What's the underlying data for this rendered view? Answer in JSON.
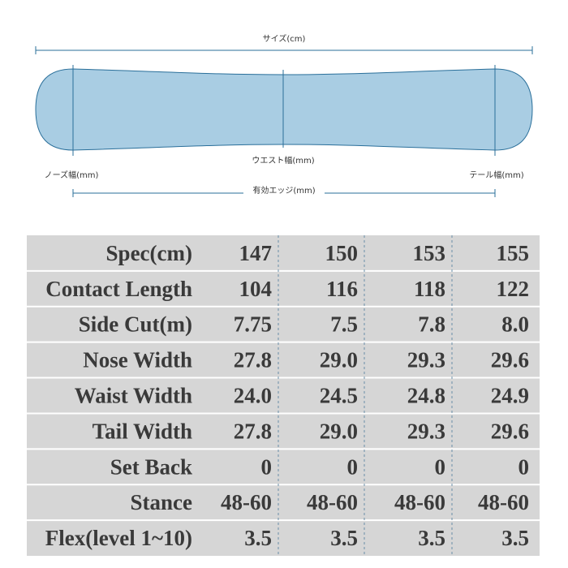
{
  "diagram": {
    "size_label": "サイズ(cm)",
    "waist_label": "ウエスト幅(mm)",
    "nose_label": "ノーズ幅(mm)",
    "tail_label": "テール幅(mm)",
    "edge_label": "有効エッジ(mm)"
  },
  "table": {
    "rows": [
      [
        "Spec(cm)",
        "147",
        "150",
        "153",
        "155"
      ],
      [
        "Contact Length",
        "104",
        "116",
        "118",
        "122"
      ],
      [
        "Side Cut(m)",
        "7.75",
        "7.5",
        "7.8",
        "8.0"
      ],
      [
        "Nose Width",
        "27.8",
        "29.0",
        "29.3",
        "29.6"
      ],
      [
        "Waist Width",
        "24.0",
        "24.5",
        "24.8",
        "24.9"
      ],
      [
        "Tail Width",
        "27.8",
        "29.0",
        "29.3",
        "29.6"
      ],
      [
        "Set Back",
        "0",
        "0",
        "0",
        "0"
      ],
      [
        "Stance",
        "48-60",
        "48-60",
        "48-60",
        "48-60"
      ],
      [
        "Flex(level 1~10)",
        "3.5",
        "3.5",
        "3.5",
        "3.5"
      ]
    ]
  }
}
